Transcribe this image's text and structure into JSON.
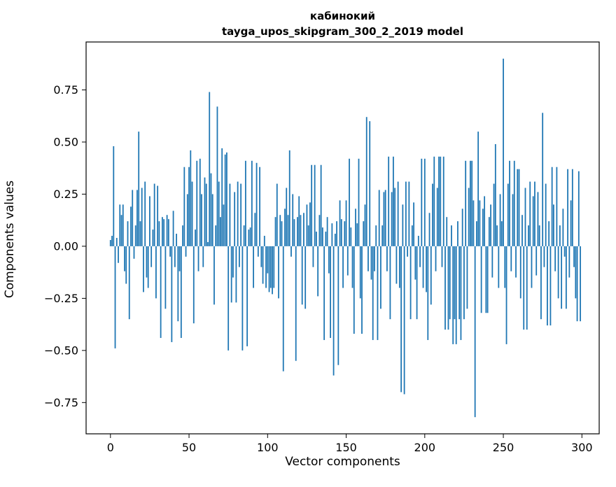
{
  "chart_data": {
    "type": "bar",
    "title": "кабинокий",
    "subtitle": "tayga_upos_skipgram_300_2_2019 model",
    "xlabel": "Vector components",
    "ylabel": "Components values",
    "bar_color": "#1f77b4",
    "xlim": [
      -15.5,
      311
    ],
    "ylim": [
      -0.9,
      0.98
    ],
    "grid": false,
    "legend": "none",
    "xticks": [
      0,
      50,
      100,
      150,
      200,
      250,
      300
    ],
    "xtick_labels": [
      "0",
      "50",
      "100",
      "150",
      "200",
      "250",
      "300"
    ],
    "yticks": [
      0.75,
      0.5,
      0.25,
      0.0,
      -0.25,
      -0.5,
      -0.75
    ],
    "ytick_labels": [
      "0.75",
      "0.50",
      "0.25",
      "0.00",
      "−0.25",
      "−0.50",
      "−0.75"
    ],
    "values": [
      0.03,
      0.05,
      0.48,
      -0.49,
      0.04,
      -0.08,
      0.2,
      0.15,
      0.2,
      -0.12,
      -0.18,
      0.12,
      -0.35,
      0.19,
      0.27,
      -0.06,
      0.1,
      0.27,
      0.55,
      0.12,
      0.28,
      -0.22,
      0.31,
      -0.15,
      -0.2,
      0.24,
      -0.1,
      0.08,
      0.3,
      -0.25,
      0.29,
      0.12,
      -0.44,
      0.14,
      0.13,
      -0.3,
      0.15,
      0.13,
      -0.05,
      -0.46,
      0.17,
      -0.1,
      0.06,
      -0.36,
      -0.12,
      -0.44,
      0.1,
      0.38,
      -0.05,
      0.25,
      0.38,
      0.46,
      0.31,
      -0.37,
      0.08,
      0.41,
      -0.12,
      0.42,
      0.25,
      -0.1,
      0.33,
      0.3,
      0.02,
      0.74,
      0.35,
      0.25,
      -0.28,
      0.1,
      0.67,
      0.31,
      0.14,
      0.47,
      0.2,
      0.44,
      0.45,
      -0.5,
      0.3,
      -0.27,
      -0.15,
      0.26,
      -0.27,
      0.31,
      -0.1,
      0.3,
      -0.5,
      0.1,
      0.41,
      -0.48,
      0.08,
      0.09,
      0.41,
      -0.2,
      0.16,
      0.4,
      -0.05,
      0.38,
      -0.1,
      -0.18,
      0.05,
      -0.2,
      -0.13,
      -0.22,
      -0.2,
      -0.23,
      -0.2,
      0.14,
      0.3,
      -0.25,
      0.15,
      0.12,
      -0.6,
      0.18,
      0.28,
      0.15,
      0.46,
      -0.05,
      0.25,
      0.13,
      -0.55,
      0.14,
      0.24,
      0.15,
      -0.28,
      0.16,
      -0.3,
      0.2,
      0.1,
      0.21,
      0.39,
      -0.1,
      0.39,
      0.07,
      -0.24,
      0.15,
      0.39,
      0.09,
      -0.45,
      0.07,
      0.14,
      -0.13,
      -0.44,
      0.11,
      -0.62,
      0.06,
      0.12,
      -0.57,
      0.22,
      0.13,
      -0.2,
      0.12,
      0.22,
      -0.14,
      0.42,
      0.09,
      -0.2,
      -0.42,
      0.18,
      0.11,
      0.42,
      -0.25,
      -0.42,
      0.12,
      0.2,
      0.62,
      -0.12,
      0.6,
      -0.16,
      -0.45,
      -0.12,
      0.1,
      -0.45,
      0.27,
      -0.3,
      0.1,
      0.26,
      0.27,
      -0.12,
      0.43,
      -0.35,
      0.26,
      0.43,
      0.28,
      -0.18,
      0.31,
      -0.2,
      -0.7,
      0.2,
      -0.71,
      0.31,
      -0.05,
      0.31,
      -0.35,
      0.1,
      0.21,
      -0.16,
      -0.35,
      0.05,
      -0.1,
      0.42,
      -0.2,
      0.42,
      -0.22,
      -0.45,
      0.16,
      -0.28,
      0.3,
      0.43,
      -0.12,
      0.28,
      0.43,
      0.43,
      -0.1,
      0.43,
      -0.4,
      0.14,
      -0.4,
      -0.35,
      0.1,
      -0.47,
      -0.35,
      -0.47,
      0.12,
      -0.35,
      -0.45,
      0.18,
      -0.35,
      0.41,
      -0.3,
      0.28,
      0.41,
      0.41,
      0.22,
      -0.82,
      0.12,
      0.55,
      0.22,
      -0.32,
      0.18,
      0.24,
      -0.32,
      -0.32,
      0.14,
      0.2,
      -0.15,
      0.3,
      0.49,
      0.1,
      -0.2,
      0.25,
      0.12,
      0.9,
      -0.2,
      -0.47,
      0.3,
      0.41,
      -0.12,
      0.25,
      0.41,
      -0.15,
      0.37,
      0.37,
      -0.25,
      0.15,
      -0.4,
      0.28,
      -0.4,
      0.1,
      0.31,
      -0.2,
      0.24,
      0.31,
      -0.14,
      0.26,
      0.1,
      -0.35,
      0.64,
      -0.1,
      0.3,
      -0.38,
      0.12,
      -0.38,
      0.38,
      0.2,
      -0.12,
      0.38,
      -0.25,
      0.1,
      -0.3,
      0.18,
      -0.05,
      -0.3,
      0.37,
      -0.15,
      0.22,
      0.37,
      -0.1,
      -0.25,
      -0.36,
      0.36,
      -0.36
    ]
  }
}
